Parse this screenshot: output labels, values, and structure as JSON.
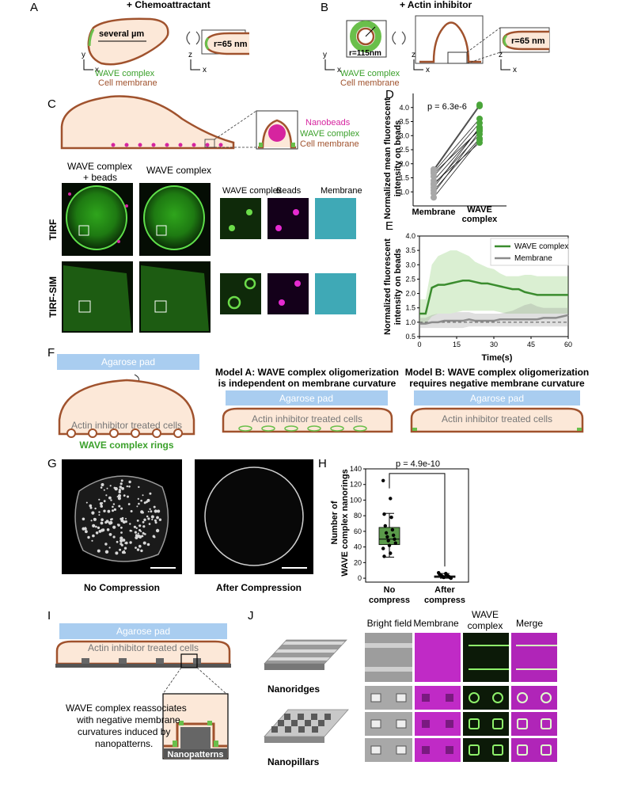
{
  "colors": {
    "cell": "#fce8d8",
    "membrane": "#a0522d",
    "wave": "#6abf4b",
    "agarose": "#a9cdf0",
    "green_line": "#3a8c2e",
    "grey_line": "#8c8c8c",
    "bead": "#d6249f"
  },
  "panelA": {
    "letter": "A",
    "title": "+ Chemoattractant",
    "size_label": "several µm",
    "radius": "r=65 nm",
    "legend_wave": "WAVE complex",
    "legend_membrane": "Cell membrane",
    "ax_y": "y",
    "ax_x": "x",
    "ax_z": "z"
  },
  "panelB": {
    "letter": "B",
    "title": "+ Actin inhibitor",
    "ring_radius": "r=115nm",
    "radius": "r=65 nm",
    "legend_wave": "WAVE complex",
    "legend_membrane": "Cell membrane",
    "ax_y": "y",
    "ax_x": "x",
    "ax_z": "z"
  },
  "panelC": {
    "letter": "C",
    "legend_beads": "Nanobeads",
    "legend_wave": "WAVE complex",
    "legend_membrane": "Cell membrane",
    "col1_line1": "WAVE complex",
    "col1_line2": "+ beads",
    "col2": "WAVE complex",
    "zoom1": "WAVE complex",
    "zoom2": "Beads",
    "zoom3": "Membrane",
    "row1": "TIRF",
    "row2": "TIRF-SIM"
  },
  "panelD": {
    "letter": "D",
    "pvalue": "p = 6.3e-6",
    "ylabel_line1": "Normalized mean fluorescent",
    "ylabel_line2": "intensity on beads",
    "xcat1": "Membrane",
    "xcat2_line1": "WAVE",
    "xcat2_line2": "complex"
  },
  "panelE": {
    "letter": "E",
    "ylabel_line1": "Normalized fluorescent",
    "ylabel_line2": "intensity on beads",
    "xlabel": "Time(s)",
    "legend_wave": "WAVE complex",
    "legend_membrane": "Membrane"
  },
  "panelF": {
    "letter": "F",
    "agarose": "Agarose pad",
    "cells": "Actin inhibitor treated cells",
    "rings": "WAVE complex rings",
    "modelA_line1": "Model A: WAVE complex oligomerization",
    "modelA_line2": "is independent on membrane curvature",
    "modelB_line1": "Model B: WAVE complex oligomerization",
    "modelB_line2": "requires negative membrane curvature"
  },
  "panelG": {
    "letter": "G",
    "label1": "No Compression",
    "label2": "After Compression"
  },
  "panelH": {
    "letter": "H",
    "pvalue": "p = 4.9e-10",
    "ylabel_line1": "Number of",
    "ylabel_line2": "WAVE complex nanorings",
    "x1_line1": "No",
    "x1_line2": "compress",
    "x2_line1": "After",
    "x2_line2": "compress"
  },
  "panelI": {
    "letter": "I",
    "agarose": "Agarose pad",
    "cells": "Actin inhibitor treated cells",
    "text_line1": "WAVE complex reassociates",
    "text_line2": "with negative membrane",
    "text_line3": "curvatures induced by",
    "text_line4": "nanopatterns.",
    "nanopatterns": "Nanopatterns"
  },
  "panelJ": {
    "letter": "J",
    "ridges": "Nanoridges",
    "pillars": "Nanopillars",
    "col1": "Bright field",
    "col2": "Membrane",
    "col3_line1": "WAVE",
    "col3_line2": "complex",
    "col4": "Merge"
  },
  "chart_data": [
    {
      "panel": "D",
      "type": "scatter",
      "ylabel": "Normalized mean fluorescent intensity on beads",
      "categories": [
        "Membrane",
        "WAVE complex"
      ],
      "ylim": [
        0.5,
        4.5
      ],
      "yticks": [
        1.0,
        1.5,
        2.0,
        2.5,
        3.0,
        3.5,
        4.0
      ],
      "pairs": [
        [
          0.8,
          2.85
        ],
        [
          0.95,
          3.15
        ],
        [
          1.05,
          2.9
        ],
        [
          1.15,
          3.3
        ],
        [
          1.25,
          3.05
        ],
        [
          1.3,
          2.75
        ],
        [
          1.4,
          3.25
        ],
        [
          1.55,
          3.45
        ],
        [
          1.65,
          3.2
        ],
        [
          1.7,
          3.6
        ],
        [
          1.75,
          4.05
        ],
        [
          1.8,
          4.1
        ]
      ],
      "annotation": "p = 6.3e-6"
    },
    {
      "panel": "E",
      "type": "line",
      "xlabel": "Time(s)",
      "ylabel": "Normalized fluorescent intensity on beads",
      "xlim": [
        0,
        60
      ],
      "ylim": [
        0.5,
        4.0
      ],
      "xticks": [
        0,
        15,
        30,
        45,
        60
      ],
      "yticks": [
        0.5,
        1.0,
        1.5,
        2.0,
        2.5,
        3.0,
        3.5,
        4.0
      ],
      "x": [
        0,
        2.5,
        5,
        7.5,
        10,
        12.5,
        15,
        17.5,
        20,
        22.5,
        25,
        27.5,
        30,
        32.5,
        35,
        37.5,
        40,
        42.5,
        45,
        47.5,
        50,
        52.5,
        55,
        57.5,
        60
      ],
      "series": [
        {
          "name": "WAVE complex",
          "values": [
            1.3,
            1.3,
            2.2,
            2.3,
            2.3,
            2.35,
            2.4,
            2.45,
            2.45,
            2.4,
            2.35,
            2.35,
            2.3,
            2.25,
            2.2,
            2.15,
            2.15,
            2.05,
            2.0,
            1.95,
            1.95,
            1.95,
            1.95,
            1.95,
            1.95
          ],
          "upper": [
            1.8,
            1.8,
            3.0,
            3.3,
            3.4,
            3.5,
            3.5,
            3.4,
            3.3,
            3.1,
            3.0,
            2.9,
            2.85,
            2.7,
            2.6,
            2.6,
            2.6,
            2.65,
            2.65,
            2.6,
            2.6,
            2.6,
            2.6,
            2.6,
            2.6
          ],
          "lower": [
            0.95,
            0.95,
            1.2,
            1.3,
            1.3,
            1.3,
            1.35,
            1.4,
            1.4,
            1.4,
            1.4,
            1.4,
            1.4,
            1.35,
            1.3,
            1.3,
            1.3,
            1.3,
            1.3,
            1.3,
            1.3,
            1.3,
            1.3,
            1.3,
            1.3
          ]
        },
        {
          "name": "Membrane",
          "values": [
            0.95,
            0.95,
            1.0,
            1.0,
            1.05,
            1.05,
            1.05,
            1.05,
            1.1,
            1.05,
            1.05,
            1.05,
            1.05,
            1.1,
            1.1,
            1.1,
            1.1,
            1.1,
            1.1,
            1.1,
            1.15,
            1.15,
            1.15,
            1.2,
            1.25
          ],
          "upper": [
            1.15,
            1.15,
            1.25,
            1.3,
            1.3,
            1.3,
            1.35,
            1.35,
            1.35,
            1.3,
            1.3,
            1.3,
            1.3,
            1.3,
            1.35,
            1.4,
            1.5,
            1.6,
            1.65,
            1.55,
            1.5,
            1.5,
            1.5,
            1.5,
            1.5
          ],
          "lower": [
            0.8,
            0.8,
            0.8,
            0.8,
            0.8,
            0.8,
            0.8,
            0.8,
            0.85,
            0.85,
            0.85,
            0.85,
            0.85,
            0.85,
            0.85,
            0.85,
            0.85,
            0.85,
            0.85,
            0.85,
            0.85,
            0.85,
            0.85,
            0.85,
            0.85
          ]
        }
      ],
      "reference_line": 1.0
    },
    {
      "panel": "H",
      "type": "box",
      "ylabel": "Number of WAVE complex nanorings",
      "categories": [
        "No compress",
        "After compress"
      ],
      "ylim": [
        -5,
        140
      ],
      "yticks": [
        0,
        20,
        40,
        60,
        80,
        100,
        120,
        140
      ],
      "boxes": [
        {
          "q1": 43,
          "median": 50,
          "q3": 65,
          "whisker_low": 27,
          "whisker_high": 83
        },
        {
          "q1": 1,
          "median": 2,
          "q3": 3,
          "whisker_low": 0,
          "whisker_high": 6
        }
      ],
      "points": [
        [
          125,
          102,
          82,
          78,
          67,
          62,
          58,
          55,
          53,
          50,
          48,
          45,
          42,
          38,
          32,
          28
        ],
        [
          7,
          6,
          5,
          4,
          4,
          3,
          3,
          2,
          2,
          1,
          1,
          0
        ]
      ],
      "annotation": "p = 4.9e-10"
    }
  ]
}
